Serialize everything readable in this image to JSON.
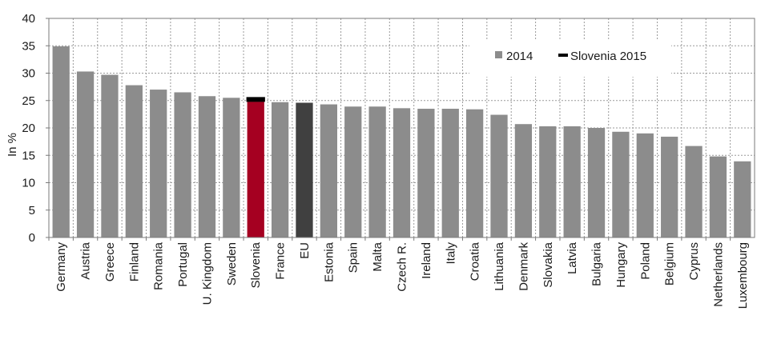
{
  "chart_data": {
    "type": "bar",
    "ylabel": "In %",
    "ylim": [
      0,
      40
    ],
    "yticks": [
      0,
      5,
      10,
      15,
      20,
      25,
      30,
      35,
      40
    ],
    "grid": true,
    "legend_position": "top-right",
    "categories": [
      "Germany",
      "Austria",
      "Greece",
      "Finland",
      "Romania",
      "Portugal",
      "U. Kingdom",
      "Sweden",
      "Slovenia",
      "France",
      "EU",
      "Estonia",
      "Spain",
      "Malta",
      "Czech R.",
      "Ireland",
      "Italy",
      "Croatia",
      "Lithuania",
      "Denmark",
      "Slovakia",
      "Latvia",
      "Bulgaria",
      "Hungary",
      "Poland",
      "Belgium",
      "Cyprus",
      "Netherlands",
      "Luxembourg"
    ],
    "series": [
      {
        "name": "2014",
        "color": "#8c8c8c",
        "values": [
          34.9,
          30.3,
          29.7,
          27.8,
          27.0,
          26.5,
          25.8,
          25.5,
          24.8,
          24.7,
          24.6,
          24.3,
          23.9,
          23.9,
          23.6,
          23.5,
          23.5,
          23.4,
          22.4,
          20.7,
          20.3,
          20.3,
          20.0,
          19.3,
          19.0,
          18.4,
          16.7,
          14.8,
          13.9
        ]
      },
      {
        "name": "Slovenia 2015",
        "color": "#000000",
        "marker": "line",
        "category": "Slovenia",
        "value": 25.2
      }
    ],
    "highlight": {
      "Slovenia": "#a50021",
      "EU": "#404040"
    }
  }
}
